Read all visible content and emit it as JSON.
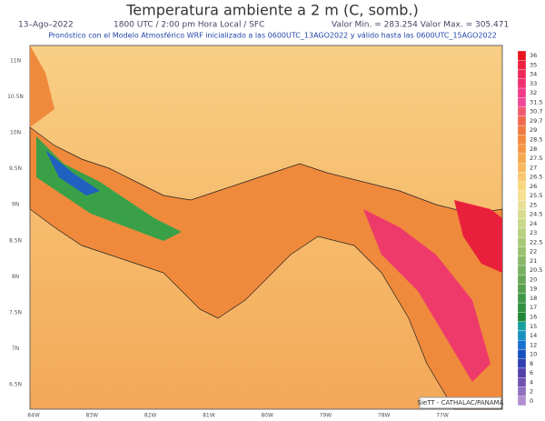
{
  "header": {
    "title": "Temperatura ambiente a 2 m (C, somb.)",
    "date": "13–Ago–2022",
    "time": "1800 UTC / 2:00 pm Hora Local / SFC",
    "range": "Valor Min. = 283.254  Valor Max. = 305.471",
    "subtitle": "Pronóstico con el Modelo Atmosférico WRF inicializado a las 0600UTC_13AGO2022 y válido hasta las  0600UTC_15AGO2022"
  },
  "map": {
    "lat_labels": [
      "11N",
      "10.5N",
      "10N",
      "9.5N",
      "9N",
      "8.5N",
      "8N",
      "7.5N",
      "7N",
      "6.5N"
    ],
    "lon_labels": [
      "84W",
      "83W",
      "82W",
      "81W",
      "80W",
      "79W",
      "78W",
      "77W"
    ],
    "credit": "SieTT - CATHALAC/PANAMA"
  },
  "colorbar": {
    "labels": [
      36,
      35,
      34,
      33,
      32,
      31.5,
      30.7,
      29.7,
      29,
      28.5,
      28,
      27.5,
      27,
      26.5,
      26,
      25.5,
      25,
      24.5,
      24,
      23,
      22.5,
      22,
      21,
      20.5,
      20,
      19,
      18,
      17,
      16,
      15,
      14,
      12,
      10,
      8,
      6,
      4,
      2,
      0
    ],
    "colors": [
      "#e8141e",
      "#ee2040",
      "#f02858",
      "#f03070",
      "#f03c88",
      "#f04898",
      "#f05a70",
      "#f06a50",
      "#f07a40",
      "#f28a40",
      "#f49848",
      "#f6a850",
      "#f8b860",
      "#f8c870",
      "#f8d880",
      "#f4e090",
      "#e8e098",
      "#d8dc90",
      "#c8d888",
      "#b8d080",
      "#a8c878",
      "#98c070",
      "#88b868",
      "#78b060",
      "#68a858",
      "#58a050",
      "#409848",
      "#309040",
      "#208838",
      "#18a0a0",
      "#1890c0",
      "#1870d0",
      "#1850c0",
      "#3040b0",
      "#5040a8",
      "#7050b0",
      "#9070c0",
      "#b090d0"
    ]
  }
}
